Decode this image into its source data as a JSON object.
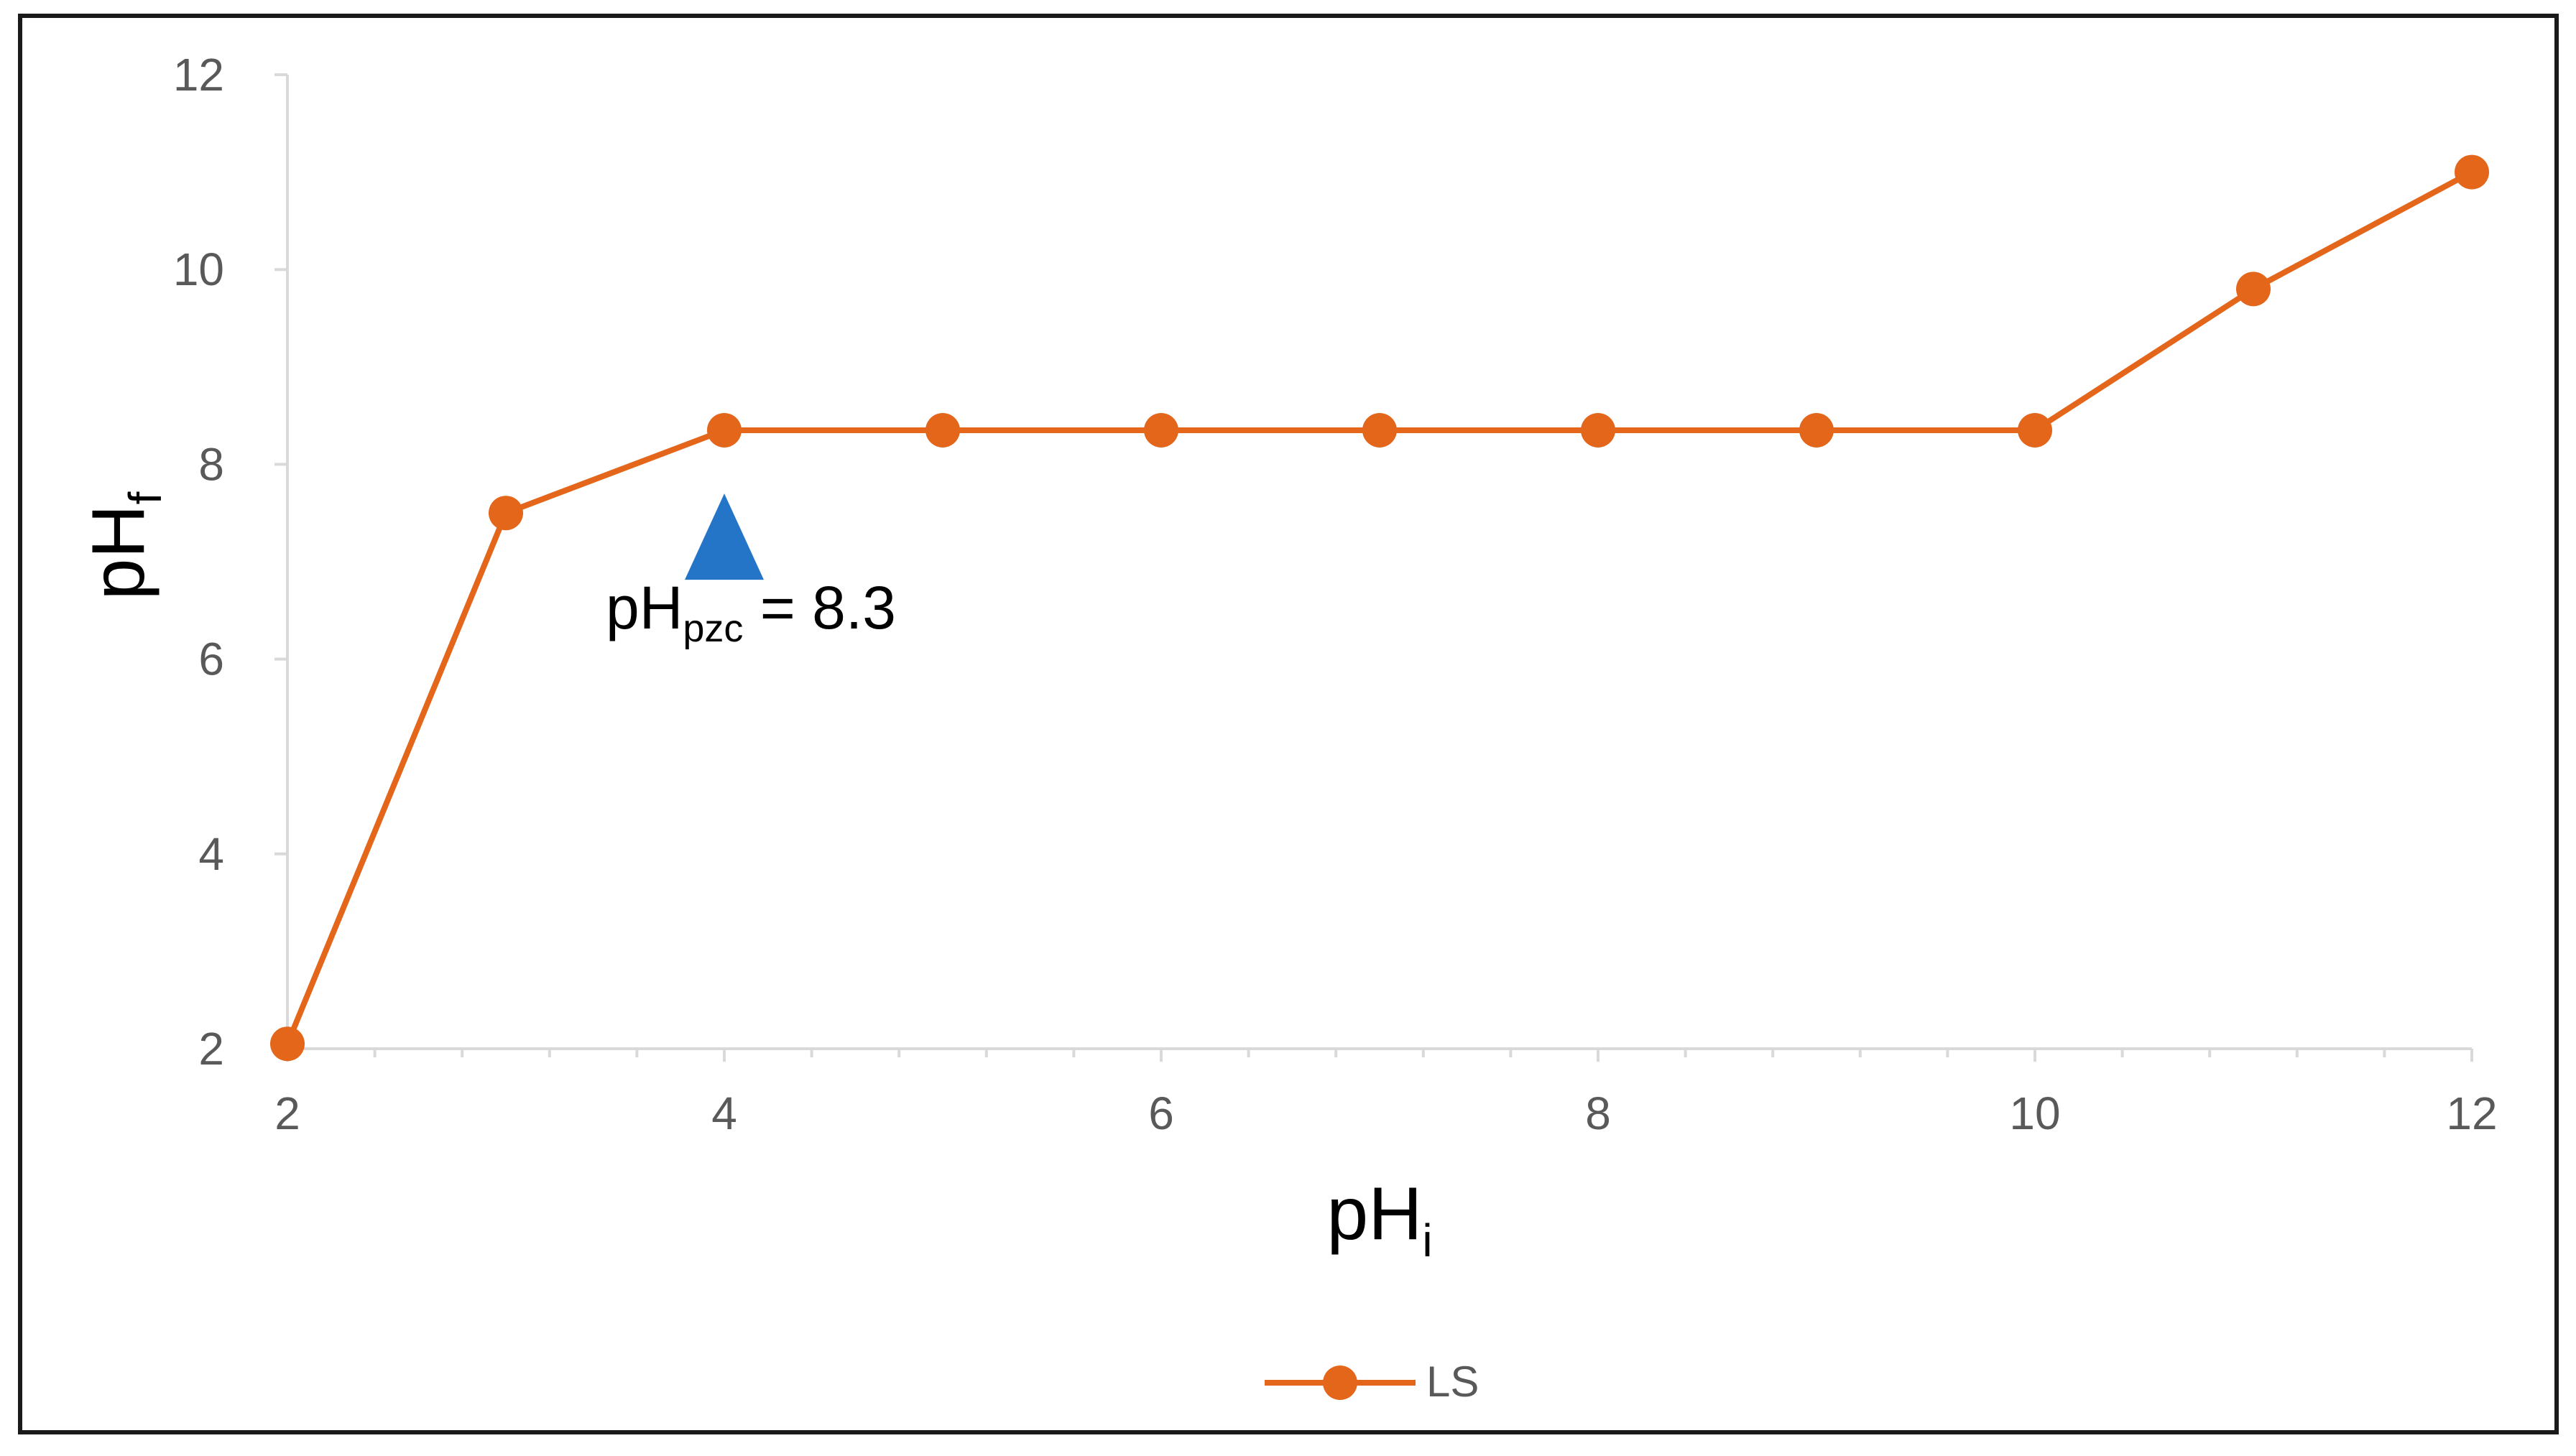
{
  "chart_data": {
    "type": "line",
    "title": "",
    "xlabel": "pH",
    "xlabel_sub": "i",
    "ylabel": "pH",
    "ylabel_sub": "f",
    "xlim": [
      2,
      12
    ],
    "ylim": [
      2,
      12
    ],
    "x_ticks": [
      "2",
      "4",
      "6",
      "8",
      "10",
      "12"
    ],
    "y_ticks": [
      "2",
      "4",
      "6",
      "8",
      "10",
      "12"
    ],
    "grid": false,
    "legend_position": "bottom-center",
    "series": [
      {
        "name": "LS",
        "color": "#E4661B",
        "marker": "circle",
        "x": [
          2,
          3,
          4,
          5,
          6,
          7,
          8,
          9,
          10,
          11,
          12
        ],
        "y": [
          2.05,
          7.5,
          8.35,
          8.35,
          8.35,
          8.35,
          8.35,
          8.35,
          8.35,
          9.8,
          11.0
        ]
      }
    ],
    "annotation": {
      "marker": "triangle-up",
      "marker_color": "#2475C7",
      "marker_x": 4,
      "marker_y": 7.7,
      "text_prefix": "pH",
      "text_sub": "pzc",
      "text_suffix": " = 8.3"
    }
  }
}
